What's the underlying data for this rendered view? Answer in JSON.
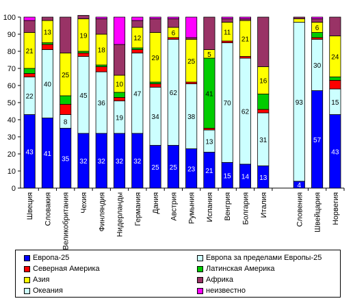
{
  "chart_data": {
    "type": "bar",
    "stacked": true,
    "title": "",
    "xlabel": "",
    "ylabel": "",
    "ylim": [
      0,
      100
    ],
    "yticks": [
      0,
      10,
      20,
      30,
      40,
      50,
      60,
      70,
      80,
      90,
      100
    ],
    "grid": false,
    "legend_position": "bottom",
    "categories": [
      "Швеция",
      "Словакия",
      "Великобритания",
      "Чехия",
      "Финляндия",
      "Нидерланды",
      "Германия",
      "Дания",
      "Австрия",
      "Румыния",
      "Испания",
      "Венгрия",
      "Болгария",
      "Италия",
      "Словения",
      "Швейцария",
      "Норвегия"
    ],
    "category_gap_after": 14,
    "series": [
      {
        "name": "Европа-25",
        "color": "#0000ff",
        "values": [
          43,
          41,
          35,
          32,
          32,
          32,
          32,
          25,
          25,
          23,
          21,
          15,
          14,
          13,
          4,
          57,
          43
        ],
        "labels": [
          "43",
          "41",
          "35",
          "32",
          "32",
          "32",
          "32",
          "25",
          "25",
          "23",
          "21",
          "15",
          "14",
          "13",
          "4",
          "57",
          "43"
        ]
      },
      {
        "name": "Европа за пределами Европы-25",
        "color": "#ccffff",
        "values": [
          22,
          40,
          8,
          45,
          36,
          19,
          47,
          34,
          62,
          38,
          13,
          70,
          62,
          31,
          93,
          30,
          15
        ],
        "labels": [
          "22",
          "40",
          "8",
          "45",
          "36",
          "19",
          "47",
          "34",
          "62",
          "38",
          "13",
          "70",
          "62",
          "31",
          "93",
          "30",
          "15"
        ]
      },
      {
        "name": "Северная Америка",
        "color": "#ff0000",
        "values": [
          2,
          3,
          6,
          2,
          3,
          2,
          2,
          2,
          1,
          1,
          1,
          1,
          1,
          2,
          0,
          1,
          5
        ],
        "labels": [
          "",
          "",
          "",
          "",
          "",
          "",
          "",
          "",
          "",
          "",
          "",
          "",
          "",
          "",
          "",
          "",
          ""
        ]
      },
      {
        "name": "Латинская Америка",
        "color": "#00cc00",
        "values": [
          3,
          1,
          5,
          1,
          1,
          3,
          1,
          1,
          0,
          0,
          41,
          0,
          0,
          9,
          0,
          3,
          2
        ],
        "labels": [
          "",
          "",
          "",
          "",
          "",
          "",
          "",
          "",
          "",
          "",
          "41",
          "",
          "",
          "",
          "",
          "",
          ""
        ]
      },
      {
        "name": "Азия",
        "color": "#ffff00",
        "values": [
          21,
          13,
          25,
          19,
          18,
          10,
          12,
          29,
          6,
          25,
          5,
          11,
          21,
          16,
          2,
          6,
          24
        ],
        "labels": [
          "21",
          "13",
          "25",
          "19",
          "18",
          "10",
          "12",
          "29",
          "6",
          "25",
          "5",
          "11",
          "21",
          "16",
          "",
          "6",
          "24"
        ]
      },
      {
        "name": "Африка",
        "color": "#993366",
        "values": [
          7,
          2,
          21,
          2,
          9,
          18,
          4,
          8,
          5,
          1,
          19,
          2,
          1,
          29,
          1,
          2,
          11
        ],
        "labels": [
          "",
          "",
          "",
          "",
          "",
          "",
          "",
          "",
          "",
          "",
          "",
          "",
          "",
          "",
          "",
          "",
          ""
        ]
      },
      {
        "name": "Океания",
        "color": "#ccffff",
        "values": [
          0,
          0,
          0,
          0,
          0,
          0,
          0,
          0,
          0,
          0,
          0,
          0,
          0,
          0,
          0,
          0,
          0
        ],
        "labels": [
          "",
          "",
          "",
          "",
          "",
          "",
          "",
          "",
          "",
          "",
          "",
          "",
          "",
          "",
          "",
          "",
          ""
        ]
      },
      {
        "name": "неизвестно",
        "color": "#ff00ff",
        "values": [
          2,
          0,
          0,
          0,
          1,
          16,
          2,
          1,
          1,
          12,
          0,
          1,
          1,
          0,
          0,
          1,
          0
        ],
        "labels": [
          "",
          "",
          "",
          "",
          "",
          "",
          "",
          "",
          "",
          "",
          "",
          "",
          "",
          "",
          "",
          "",
          ""
        ]
      }
    ]
  },
  "legend": {
    "items": [
      {
        "label": "Европа-25",
        "color": "#0000ff"
      },
      {
        "label": "Европа за пределами Европы-25",
        "color": "#ccffff"
      },
      {
        "label": "Северная Америка",
        "color": "#ff0000"
      },
      {
        "label": "Латинская Америка",
        "color": "#00cc00"
      },
      {
        "label": "Азия",
        "color": "#ffff00"
      },
      {
        "label": "Африка",
        "color": "#993366"
      },
      {
        "label": "Океания",
        "color": "#ccffff"
      },
      {
        "label": "неизвестно",
        "color": "#ff00ff"
      }
    ]
  }
}
